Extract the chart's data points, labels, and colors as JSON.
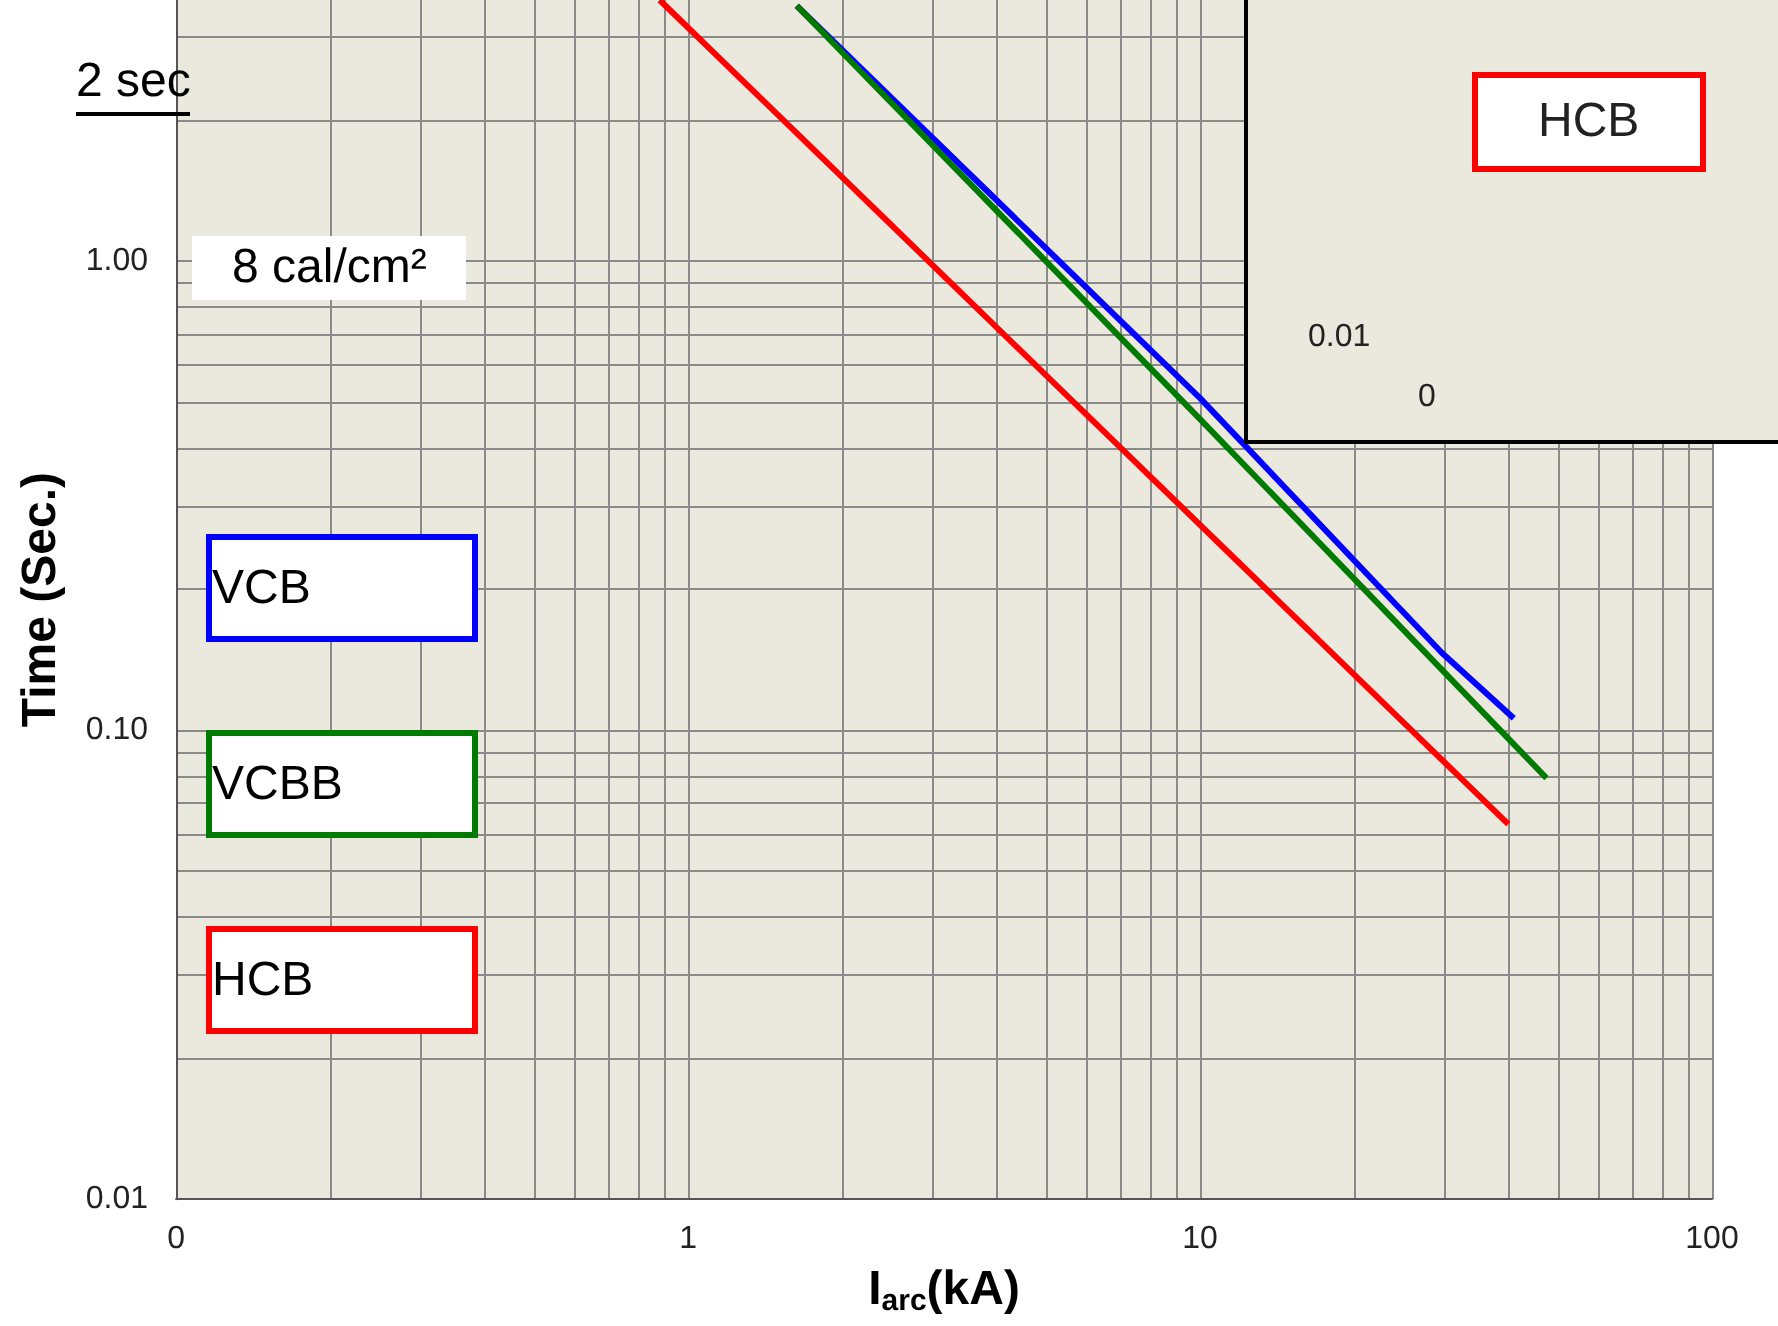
{
  "chart_data": [
    {
      "type": "line",
      "xlabel": "I$_{arc}$(kA)",
      "ylabel": "Time (Sec.)",
      "log": "xy",
      "xlim": [
        0.1,
        100
      ],
      "ylim": [
        0.01,
        3.6
      ],
      "xticks": [
        {
          "value": 0.1,
          "label": "0"
        },
        {
          "value": 0.2,
          "label": null
        },
        {
          "value": 0.3,
          "label": null
        },
        {
          "value": 0.4,
          "label": null
        },
        {
          "value": 0.5,
          "label": null
        },
        {
          "value": 0.6,
          "label": null
        },
        {
          "value": 0.7,
          "label": null
        },
        {
          "value": 0.8,
          "label": null
        },
        {
          "value": 0.9,
          "label": null
        },
        1,
        {
          "value": 2,
          "label": null
        },
        {
          "value": 3,
          "label": null
        },
        {
          "value": 4,
          "label": null
        },
        {
          "value": 5,
          "label": null
        },
        {
          "value": 6,
          "label": null
        },
        {
          "value": 7,
          "label": null
        },
        {
          "value": 8,
          "label": null
        },
        {
          "value": 9,
          "label": null
        },
        10,
        {
          "value": 20,
          "label": null
        },
        {
          "value": 30,
          "label": null
        },
        {
          "value": 40,
          "label": null
        },
        {
          "value": 50,
          "label": null
        },
        {
          "value": 60,
          "label": null
        },
        {
          "value": 70,
          "label": null
        },
        {
          "value": 80,
          "label": null
        },
        {
          "value": 90,
          "label": null
        },
        100
      ],
      "yticks": [
        0.01,
        {
          "value": 0.02,
          "label": null
        },
        {
          "value": 0.03,
          "label": null
        },
        {
          "value": 0.04,
          "label": null
        },
        {
          "value": 0.05,
          "label": null
        },
        {
          "value": 0.06,
          "label": null
        },
        {
          "value": 0.07,
          "label": null
        },
        {
          "value": 0.08,
          "label": null
        },
        {
          "value": 0.09,
          "label": null
        },
        {
          "value": 0.1,
          "label": "0.10"
        },
        {
          "value": 0.2,
          "label": null
        },
        {
          "value": 0.3,
          "label": null
        },
        {
          "value": 0.4,
          "label": null
        },
        {
          "value": 0.5,
          "label": null
        },
        {
          "value": 0.6,
          "label": null
        },
        {
          "value": 0.7,
          "label": null
        },
        {
          "value": 0.8,
          "label": null
        },
        {
          "value": 0.9,
          "label": null
        },
        {
          "value": 1,
          "label": "1.00"
        },
        {
          "value": 2,
          "label": null
        },
        {
          "value": 3,
          "label": null
        }
      ],
      "grid": true,
      "legend": "left",
      "marker": "none",
      "series": [
        {
          "name": "VCB",
          "color": "#0000ff",
          "x": [
            1.63,
            10,
            29.7,
            41
          ],
          "values": [
            3.5,
            0.51,
            0.146,
            0.106
          ]
        },
        {
          "name": "VCBB",
          "color": "#007a00",
          "x": [
            1.63,
            10,
            47.5
          ],
          "values": [
            3.5,
            0.46,
            0.079
          ]
        },
        {
          "name": "HCB",
          "color": "#ff0000",
          "x": [
            0.88,
            40
          ],
          "values": [
            3.6,
            0.063
          ]
        }
      ],
      "annotations": [
        "2 sec",
        "8 cal/cm²"
      ]
    },
    {
      "type": "other",
      "annotations": [
        "HCB",
        "0.01",
        "0"
      ]
    }
  ]
}
